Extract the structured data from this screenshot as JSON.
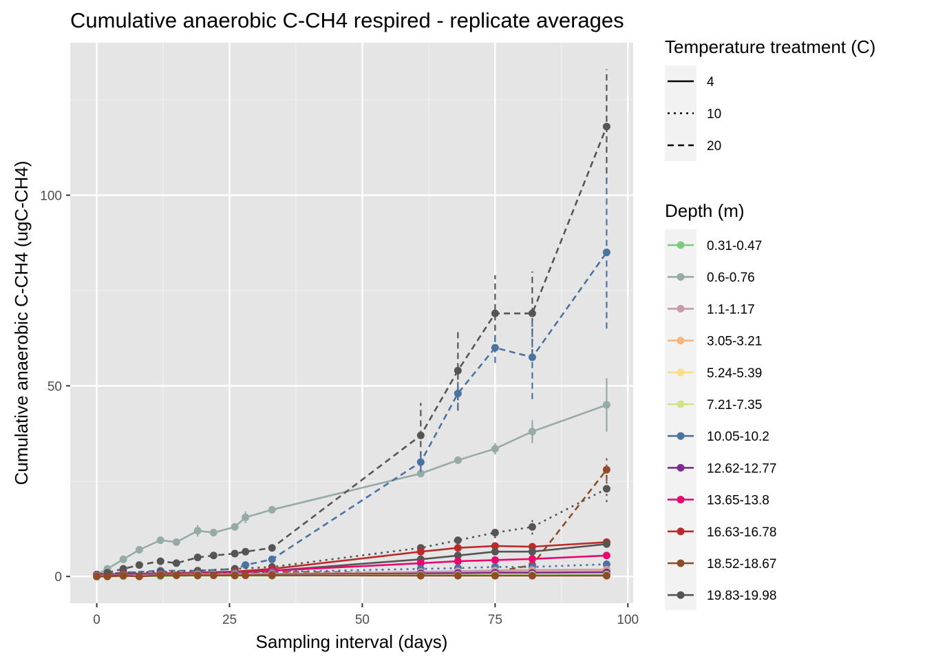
{
  "chart_data": {
    "type": "line",
    "title": "Cumulative anaerobic C-CH4 respired - replicate averages",
    "xlabel": "Sampling interval (days)",
    "ylabel": "Cumulative anaerobic C-CH4 (ugC-CH4)",
    "xlim": [
      -5,
      101
    ],
    "ylim": [
      -7,
      140
    ],
    "xticks": [
      0,
      25,
      50,
      75,
      100
    ],
    "yticks": [
      0,
      50,
      100
    ],
    "grid": true,
    "legend_placement": "right",
    "linetype_legend": {
      "title": "Temperature treatment (C)",
      "entries": [
        {
          "label": "4",
          "dash": "solid"
        },
        {
          "label": "10",
          "dash": "dotted"
        },
        {
          "label": "20",
          "dash": "dashed"
        }
      ]
    },
    "color_legend": {
      "title": "Depth (m)",
      "entries": [
        {
          "label": "0.31-0.47",
          "color": "#7fc97f"
        },
        {
          "label": "0.6-0.76",
          "color": "#96aaa7"
        },
        {
          "label": "1.1-1.17",
          "color": "#c79ba8"
        },
        {
          "label": "3.05-3.21",
          "color": "#f4b67c"
        },
        {
          "label": "5.24-5.39",
          "color": "#fcdd86"
        },
        {
          "label": "7.21-7.35",
          "color": "#cde48b"
        },
        {
          "label": "10.05-10.2",
          "color": "#4b73a1"
        },
        {
          "label": "12.62-12.77",
          "color": "#7e2a91"
        },
        {
          "label": "13.65-13.8",
          "color": "#e8066f"
        },
        {
          "label": "16.63-16.78",
          "color": "#bc2a2a"
        },
        {
          "label": "18.52-18.67",
          "color": "#8f4c25"
        },
        {
          "label": "19.83-19.98",
          "color": "#555555"
        }
      ]
    },
    "series": [
      {
        "depth": "0.6-0.76",
        "temp": "4",
        "color": "#96aaa7",
        "x": [
          0,
          2,
          5,
          8,
          12,
          15,
          19,
          22,
          26,
          28,
          33,
          61,
          68,
          75,
          82,
          96
        ],
        "y": [
          0.5,
          2,
          4.5,
          7,
          9.5,
          9,
          12,
          11.5,
          13,
          15.5,
          17.5,
          27,
          30.5,
          33.5,
          38,
          45
        ],
        "err": [
          0,
          0,
          0,
          0,
          0,
          0,
          1.5,
          1,
          1,
          1.5,
          0.8,
          0.8,
          0.8,
          1.5,
          3,
          7
        ]
      },
      {
        "depth": "19.83-19.98",
        "temp": "20",
        "color": "#555555",
        "x": [
          0,
          2,
          5,
          8,
          12,
          15,
          19,
          22,
          26,
          28,
          33,
          61,
          68,
          75,
          82,
          96
        ],
        "y": [
          0.5,
          1,
          2,
          3,
          4,
          3.5,
          5,
          5.5,
          6,
          6.5,
          7.5,
          37,
          54,
          69,
          69,
          118
        ],
        "err": [
          0,
          0,
          0,
          0,
          0,
          0,
          0,
          0,
          0,
          0,
          0,
          8.5,
          10.5,
          10,
          11,
          15
        ]
      },
      {
        "depth": "10.05-10.2",
        "temp": "20",
        "color": "#4b73a1",
        "x": [
          0,
          5,
          12,
          19,
          26,
          28,
          33,
          61,
          68,
          75,
          82,
          96
        ],
        "y": [
          0.5,
          1,
          1.5,
          1.5,
          2,
          3,
          4.5,
          30,
          48,
          60,
          57.5,
          85
        ],
        "err": [
          0,
          0,
          0,
          0,
          0,
          0,
          0,
          2.5,
          4,
          4,
          11,
          20
        ]
      },
      {
        "depth": "18.52-18.67",
        "temp": "20",
        "color": "#8f4c25",
        "x": [
          0,
          5,
          12,
          19,
          26,
          33,
          61,
          68,
          75,
          82,
          96
        ],
        "y": [
          0.3,
          0.5,
          0.6,
          0.8,
          1,
          1.2,
          1,
          1.2,
          1.2,
          3,
          28
        ],
        "err": [
          0,
          0,
          0,
          0,
          0,
          0,
          0,
          0,
          0,
          0,
          3
        ]
      },
      {
        "depth": "19.83-19.98",
        "temp": "10",
        "color": "#555555",
        "x": [
          0,
          5,
          12,
          19,
          26,
          33,
          61,
          68,
          75,
          82,
          96
        ],
        "y": [
          0.5,
          1,
          1.2,
          1.5,
          2,
          2.5,
          7.5,
          9.5,
          11.5,
          13,
          23
        ],
        "err": [
          0,
          0,
          0,
          0,
          0,
          0,
          0,
          1.5,
          1.5,
          2,
          3.5
        ]
      },
      {
        "depth": "16.63-16.78",
        "temp": "4",
        "color": "#bc2a2a",
        "x": [
          0,
          5,
          12,
          19,
          26,
          33,
          61,
          68,
          75,
          82,
          96
        ],
        "y": [
          0.5,
          0.7,
          0.8,
          1,
          1.3,
          2,
          6.5,
          7.5,
          8,
          7.8,
          9
        ],
        "err": [
          0,
          0,
          0,
          0,
          0,
          0,
          0,
          0,
          0,
          0,
          0
        ]
      },
      {
        "depth": "19.83-19.98",
        "temp": "4",
        "color": "#555555",
        "x": [
          0,
          5,
          12,
          19,
          26,
          33,
          61,
          68,
          75,
          82,
          96
        ],
        "y": [
          0.5,
          0.6,
          0.7,
          0.8,
          1,
          1.5,
          4.5,
          5.5,
          6.5,
          6.5,
          8.5
        ],
        "err": [
          0,
          0,
          0,
          0,
          0,
          0,
          0,
          0,
          0,
          0,
          0
        ]
      },
      {
        "depth": "13.65-13.8",
        "temp": "4",
        "color": "#e8066f",
        "x": [
          0,
          5,
          12,
          19,
          26,
          33,
          61,
          68,
          75,
          82,
          96
        ],
        "y": [
          0.3,
          0.5,
          0.6,
          0.8,
          1,
          1.5,
          3.5,
          4,
          4.3,
          4.6,
          5.5
        ],
        "err": [
          0,
          0,
          0,
          0,
          0,
          0,
          0,
          0,
          0,
          0,
          0
        ]
      },
      {
        "depth": "10.05-10.2",
        "temp": "10",
        "color": "#4b73a1",
        "x": [
          0,
          5,
          12,
          19,
          26,
          33,
          61,
          68,
          75,
          82,
          96
        ],
        "y": [
          0.2,
          0.4,
          0.6,
          0.8,
          1,
          1.2,
          2,
          2.2,
          2.5,
          2.5,
          3.2
        ],
        "err": [
          0,
          0,
          0,
          0,
          0,
          0,
          0,
          0,
          0,
          0,
          0
        ]
      },
      {
        "depth": "1.1-1.17",
        "temp": "4",
        "color": "#c79ba8",
        "x": [
          0,
          5,
          12,
          19,
          26,
          33,
          61,
          68,
          75,
          82,
          96
        ],
        "y": [
          0.2,
          0.3,
          0.4,
          0.5,
          0.6,
          0.7,
          1.2,
          1.4,
          1.6,
          1.7,
          1.8
        ],
        "err": [
          0,
          0,
          0,
          0,
          0,
          0,
          0,
          0,
          0,
          0,
          0
        ]
      },
      {
        "depth": "3.05-3.21",
        "temp": "4",
        "color": "#f4b67c",
        "x": [
          0,
          5,
          12,
          19,
          26,
          33,
          61,
          68,
          75,
          82,
          96
        ],
        "y": [
          0.1,
          0.2,
          0.3,
          0.4,
          0.5,
          0.6,
          0.9,
          1,
          1.1,
          1.2,
          1.3
        ],
        "err": [
          0,
          0,
          0,
          0,
          0,
          0,
          0,
          0,
          0,
          0,
          0
        ]
      },
      {
        "depth": "12.62-12.77",
        "temp": "4",
        "color": "#7e2a91",
        "x": [
          0,
          5,
          12,
          19,
          26,
          33,
          61,
          68,
          75,
          82,
          96
        ],
        "y": [
          0.1,
          0.2,
          0.3,
          0.3,
          0.4,
          0.5,
          0.8,
          0.9,
          1,
          1,
          1.1
        ],
        "err": [
          0,
          0,
          0,
          0,
          0,
          0,
          0,
          0,
          0,
          0,
          0
        ]
      },
      {
        "depth": "5.24-5.39",
        "temp": "4",
        "color": "#fcdd86",
        "x": [
          0,
          5,
          12,
          19,
          26,
          33,
          61,
          68,
          75,
          82,
          96
        ],
        "y": [
          0,
          0.1,
          0.2,
          0.2,
          0.3,
          0.3,
          0.4,
          0.4,
          0.5,
          0.5,
          0.5
        ],
        "err": [
          0,
          0,
          0,
          0,
          0,
          0,
          0,
          0,
          0,
          0,
          0
        ]
      },
      {
        "depth": "7.21-7.35",
        "temp": "4",
        "color": "#cde48b",
        "x": [
          0,
          5,
          12,
          19,
          26,
          33,
          61,
          68,
          75,
          82,
          96
        ],
        "y": [
          0,
          0.1,
          0.1,
          0.2,
          0.2,
          0.3,
          0.3,
          0.3,
          0.4,
          0.4,
          0.4
        ],
        "err": [
          0,
          0,
          0,
          0,
          0,
          0,
          0,
          0,
          0,
          0,
          0
        ]
      },
      {
        "depth": "0.31-0.47",
        "temp": "4",
        "color": "#7fc97f",
        "x": [
          0,
          5,
          12,
          19,
          26,
          33,
          61,
          68,
          75,
          82,
          96
        ],
        "y": [
          0,
          0.1,
          0.1,
          0.2,
          0.2,
          0.2,
          0.3,
          0.3,
          0.3,
          0.3,
          0.4
        ],
        "err": [
          0,
          0,
          0,
          0,
          0,
          0,
          0,
          0,
          0,
          0,
          0
        ]
      },
      {
        "depth": "18.52-18.67",
        "temp": "4",
        "color": "#8f4c25",
        "x": [
          0,
          2,
          5,
          8,
          12,
          15,
          19,
          22,
          26,
          28,
          33,
          61,
          68,
          75,
          82,
          96
        ],
        "y": [
          0,
          0,
          0.2,
          0,
          0.3,
          0.3,
          0.3,
          0.3,
          0.3,
          0.3,
          0.3,
          0.2,
          0.2,
          0.2,
          0.2,
          0.2
        ],
        "err": [
          0,
          0,
          0,
          0,
          0,
          0,
          0,
          0,
          0,
          0,
          0,
          0,
          0,
          0,
          0,
          0
        ]
      }
    ]
  }
}
